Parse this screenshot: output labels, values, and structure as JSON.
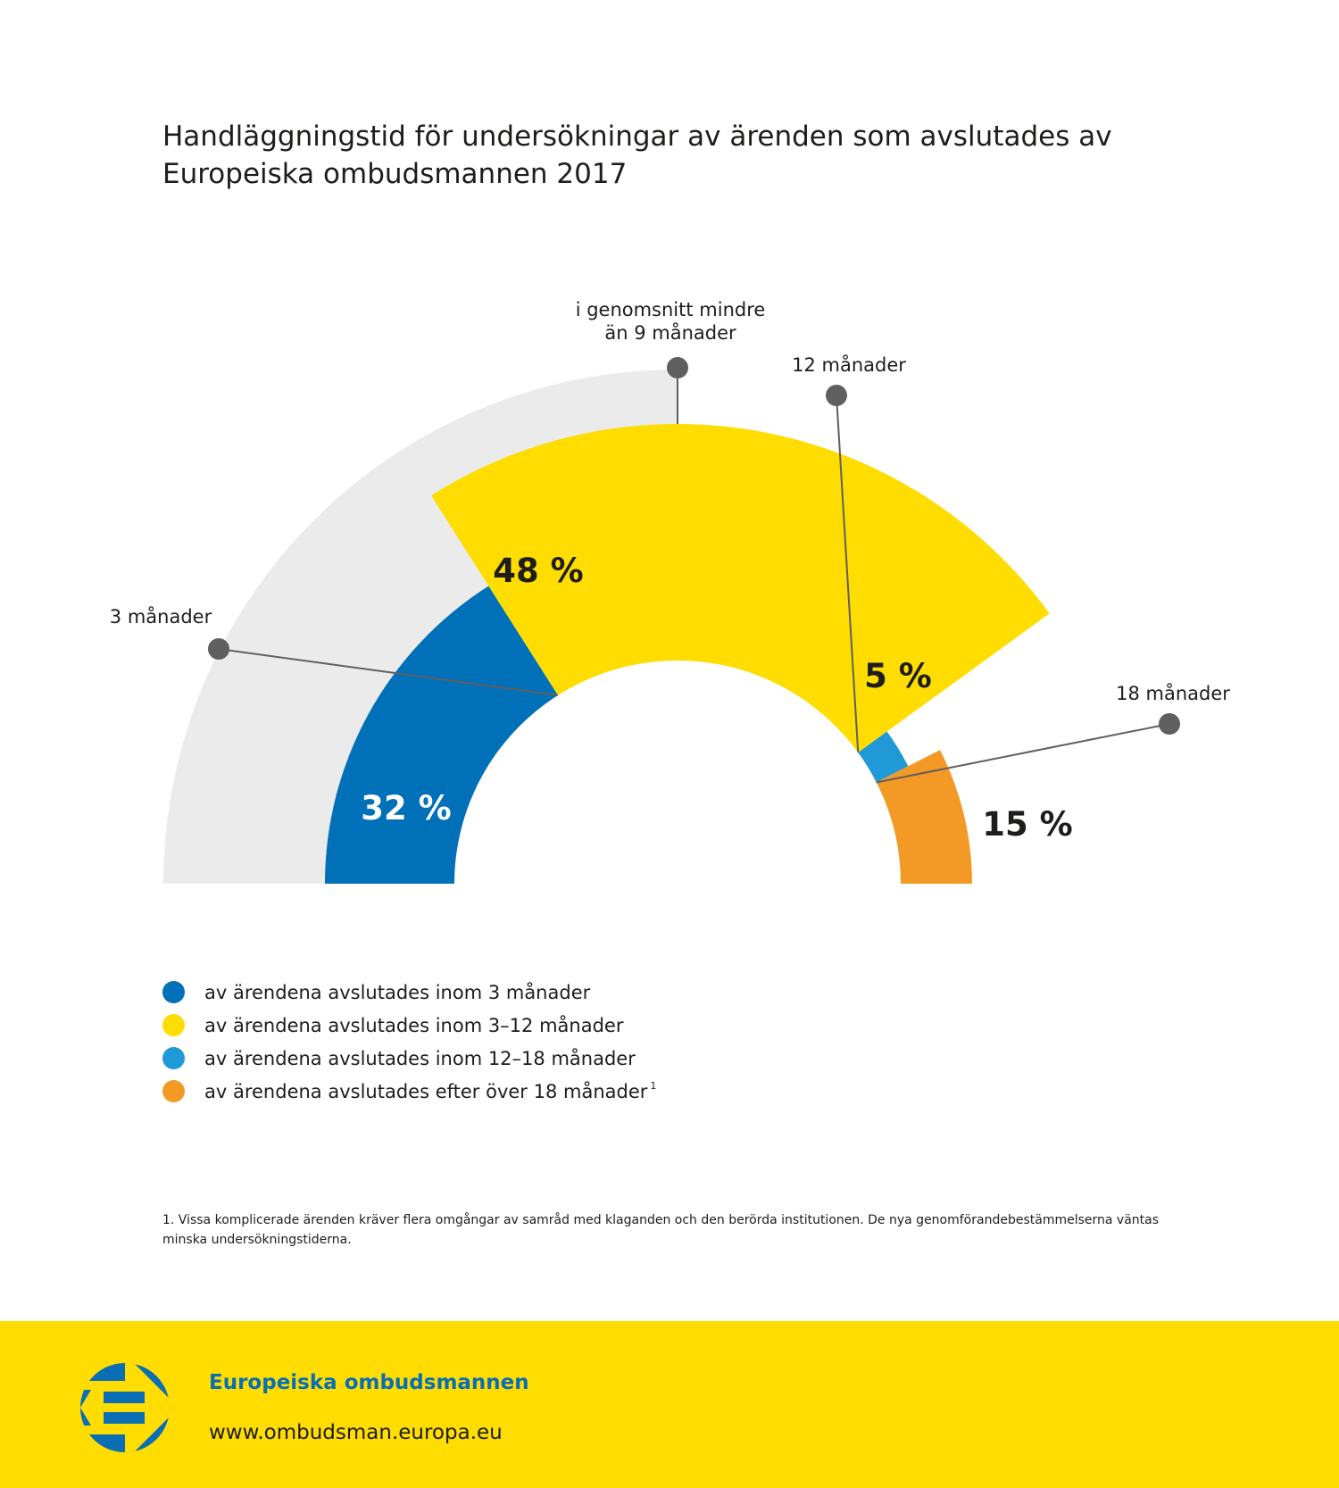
{
  "title": "Handläggningstid för undersökningar av ärenden som avslutades av Europeiska ombudsmannen 2017",
  "chart_data": {
    "type": "pie",
    "variant": "semi-donut-radial",
    "title": "Handläggningstid för undersökningar av ärenden som avslutades av Europeiska ombudsmannen 2017",
    "categories": [
      "av ärendena avslutades inom 3 månader",
      "av ärendena avslutades inom 3–12 månader",
      "av ärendena avslutades inom 12–18 månader",
      "av ärendena avslutades efter över 18 månader"
    ],
    "values": [
      32,
      48,
      5,
      15
    ],
    "value_labels": [
      "32 %",
      "48 %",
      "5 %",
      "15 %"
    ],
    "colors": [
      "#0070b8",
      "#ffdd00",
      "#1f9ad6",
      "#f39a26"
    ],
    "background_track_color": "#ebebeb",
    "annotations": [
      {
        "text": "3 månader",
        "boundary_after": 0
      },
      {
        "text": "i genomsnitt mindre\nän 9 månader",
        "position": "top"
      },
      {
        "text": "12 månader",
        "boundary_after": 1
      },
      {
        "text": "18 månader",
        "boundary_after": 2
      }
    ],
    "legend": "bottom-left"
  },
  "legend": [
    {
      "label": "av ärendena avslutades inom 3 månader",
      "color": "#0070b8",
      "note": ""
    },
    {
      "label": "av ärendena avslutades inom 3–12 månader",
      "color": "#ffdd00",
      "note": ""
    },
    {
      "label": "av ärendena avslutades inom 12–18 månader",
      "color": "#1f9ad6",
      "note": ""
    },
    {
      "label": "av ärendena avslutades efter över 18 månader",
      "color": "#f39a26",
      "note": "1"
    }
  ],
  "footnote": "1.  Vissa komplicerade ärenden kräver flera omgångar av samråd med klaganden och den berörda institutionen. De nya genomförandebestämmelserna väntas minska undersökningstiderna.",
  "footer": {
    "org_name": "Europeiska ombudsmannen",
    "website": "www.ombudsman.europa.eu",
    "background": "#ffdd00"
  }
}
